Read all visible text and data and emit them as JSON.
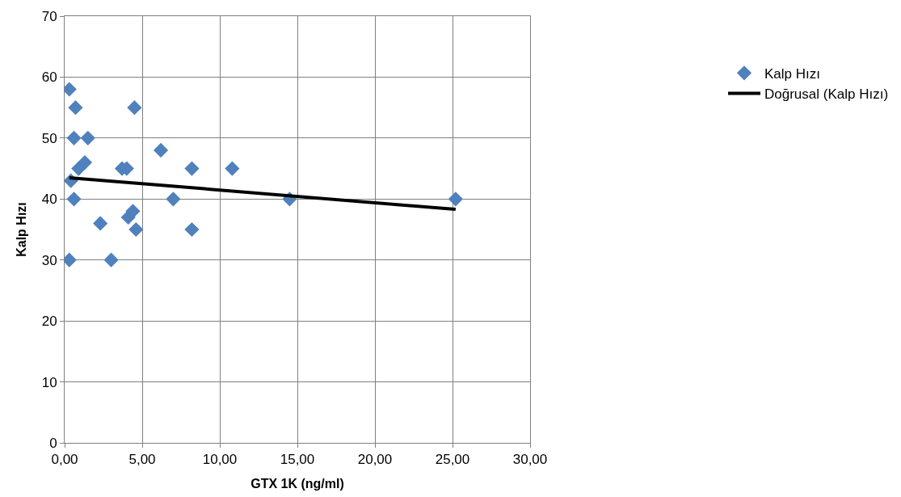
{
  "chart_data": {
    "type": "scatter",
    "xlabel": "GTX 1K (ng/ml)",
    "ylabel": "Kalp Hızı",
    "xlim": [
      0,
      30
    ],
    "xticks": [
      {
        "value": 0,
        "label": "0,00"
      },
      {
        "value": 5,
        "label": "5,00"
      },
      {
        "value": 10,
        "label": "10,00"
      },
      {
        "value": 15,
        "label": "15,00"
      },
      {
        "value": 20,
        "label": "20,00"
      },
      {
        "value": 25,
        "label": "25,00"
      },
      {
        "value": 30,
        "label": "30,00"
      }
    ],
    "ylim": [
      0,
      70
    ],
    "yticks": [
      0,
      10,
      20,
      30,
      40,
      50,
      60,
      70
    ],
    "grid": true,
    "legend": "right",
    "series": [
      {
        "name": "Kalp Hızı",
        "color": "#4f81bd",
        "marker": "diamond",
        "x": [
          0.3,
          0.7,
          0.6,
          1.5,
          0.9,
          1.3,
          0.4,
          0.6,
          0.3,
          2.3,
          3.0,
          3.7,
          4.0,
          4.5,
          4.1,
          4.4,
          4.6,
          6.2,
          7.0,
          8.2,
          8.2,
          10.8,
          14.5,
          25.2
        ],
        "values": [
          58,
          55,
          50,
          50,
          45,
          46,
          43,
          40,
          30,
          36,
          30,
          45,
          45,
          55,
          37,
          38,
          35,
          48,
          40,
          45,
          35,
          45,
          40,
          40
        ]
      },
      {
        "name": "Doğrusal (Kalp Hızı)",
        "type": "line",
        "marker": "none",
        "color": "#000000",
        "x": [
          0.3,
          25.2
        ],
        "values": [
          43.5,
          38.3
        ]
      }
    ]
  }
}
